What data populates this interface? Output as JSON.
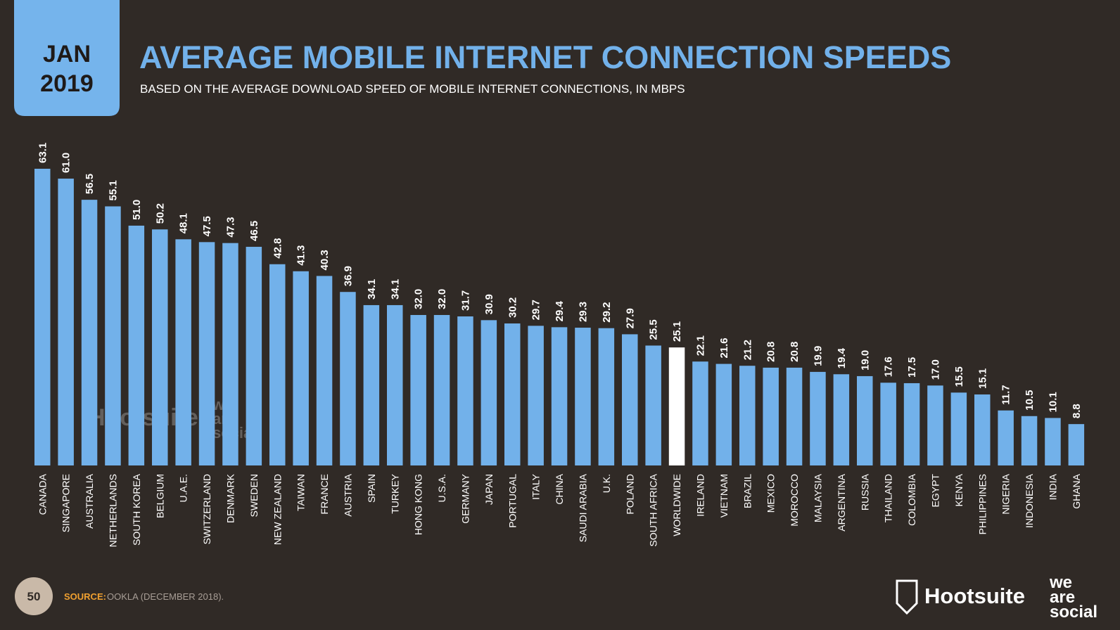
{
  "header": {
    "month": "JAN",
    "year": "2019"
  },
  "chart_data": {
    "type": "bar",
    "title": "AVERAGE MOBILE INTERNET CONNECTION SPEEDS",
    "subtitle": "BASED ON THE AVERAGE DOWNLOAD SPEED OF MOBILE INTERNET CONNECTIONS, IN MBPS",
    "categories": [
      "CANADA",
      "SINGAPORE",
      "AUSTRALIA",
      "NETHERLANDS",
      "SOUTH KOREA",
      "BELGIUM",
      "U.A.E.",
      "SWITZERLAND",
      "DENMARK",
      "SWEDEN",
      "NEW ZEALAND",
      "TAIWAN",
      "FRANCE",
      "AUSTRIA",
      "SPAIN",
      "TURKEY",
      "HONG KONG",
      "U.S.A.",
      "GERMANY",
      "JAPAN",
      "PORTUGAL",
      "ITALY",
      "CHINA",
      "SAUDI ARABIA",
      "U.K.",
      "POLAND",
      "SOUTH AFRICA",
      "WORLDWIDE",
      "IRELAND",
      "VIETNAM",
      "BRAZIL",
      "MEXICO",
      "MOROCCO",
      "MALAYSIA",
      "ARGENTINA",
      "RUSSIA",
      "THAILAND",
      "COLOMBIA",
      "EGYPT",
      "KENYA",
      "PHILIPPINES",
      "NIGERIA",
      "INDONESIA",
      "INDIA",
      "GHANA"
    ],
    "values": [
      63.1,
      61,
      56.5,
      55.1,
      51,
      50.2,
      48.1,
      47.5,
      47.3,
      46.5,
      42.8,
      41.3,
      40.3,
      36.9,
      34.1,
      34.1,
      32,
      32,
      31.7,
      30.9,
      30.2,
      29.7,
      29.4,
      29.3,
      29.2,
      27.9,
      25.5,
      25.1,
      22.1,
      21.6,
      21.2,
      20.8,
      20.8,
      19.9,
      19.4,
      19,
      17.6,
      17.5,
      17,
      15.5,
      15.1,
      11.7,
      10.5,
      10.1,
      8.8
    ],
    "value_labels": [
      "63.1",
      "61.0",
      "56.5",
      "55.1",
      "51.0",
      "50.2",
      "48.1",
      "47.5",
      "47.3",
      "46.5",
      "42.8",
      "41.3",
      "40.3",
      "36.9",
      "34.1",
      "34.1",
      "32.0",
      "32.0",
      "31.7",
      "30.9",
      "30.2",
      "29.7",
      "29.4",
      "29.3",
      "29.2",
      "27.9",
      "25.5",
      "25.1",
      "22.1",
      "21.6",
      "21.2",
      "20.8",
      "20.8",
      "19.9",
      "19.4",
      "19.0",
      "17.6",
      "17.5",
      "17.0",
      "15.5",
      "15.1",
      "11.7",
      "10.5",
      "10.1",
      "8.8"
    ],
    "color": "#72b1ea",
    "highlight_color": "#ffffff",
    "highlight_index": 27
  },
  "footer": {
    "page": "50",
    "source_label": "SOURCE:",
    "source": "OOKLA (DECEMBER 2018).",
    "logo_hootsuite": "Hootsuite",
    "logo_we": "we",
    "logo_are": "are",
    "logo_social": "social"
  }
}
